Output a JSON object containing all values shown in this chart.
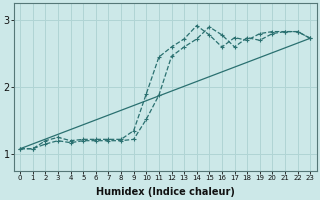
{
  "title": "",
  "xlabel": "Humidex (Indice chaleur)",
  "ylabel": "",
  "bg_color": "#cce8e8",
  "line_color": "#2a7070",
  "grid_color": "#b0d4d4",
  "xlim": [
    -0.5,
    23.5
  ],
  "ylim": [
    0.75,
    3.25
  ],
  "yticks": [
    1,
    2,
    3
  ],
  "xticks": [
    0,
    1,
    2,
    3,
    4,
    5,
    6,
    7,
    8,
    9,
    10,
    11,
    12,
    13,
    14,
    15,
    16,
    17,
    18,
    19,
    20,
    21,
    22,
    23
  ],
  "line1_x": [
    0,
    1,
    2,
    3,
    4,
    5,
    6,
    7,
    8,
    9,
    10,
    11,
    12,
    13,
    14,
    15,
    16,
    17,
    18,
    19,
    20,
    21,
    22,
    23
  ],
  "line1_y": [
    1.08,
    1.08,
    1.2,
    1.25,
    1.2,
    1.22,
    1.22,
    1.22,
    1.22,
    1.35,
    1.9,
    2.45,
    2.6,
    2.72,
    2.92,
    2.78,
    2.6,
    2.74,
    2.7,
    2.8,
    2.83,
    2.83,
    2.83,
    2.73
  ],
  "line2_x": [
    0,
    1,
    2,
    3,
    4,
    5,
    6,
    7,
    8,
    9,
    10,
    11,
    12,
    13,
    14,
    15,
    16,
    17,
    18,
    19,
    20,
    21,
    22,
    23
  ],
  "line2_y": [
    1.08,
    1.08,
    1.15,
    1.2,
    1.17,
    1.2,
    1.2,
    1.2,
    1.2,
    1.22,
    1.52,
    1.88,
    2.46,
    2.6,
    2.72,
    2.9,
    2.78,
    2.6,
    2.74,
    2.7,
    2.8,
    2.83,
    2.83,
    2.73
  ],
  "line3_x": [
    0,
    23
  ],
  "line3_y": [
    1.08,
    2.73
  ],
  "figsize": [
    3.2,
    2.0
  ],
  "dpi": 100
}
